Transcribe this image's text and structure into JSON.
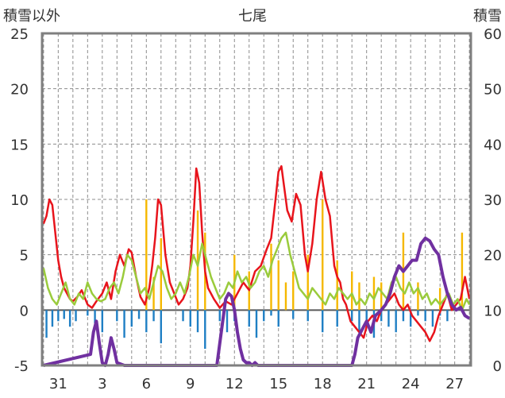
{
  "chart_data": {
    "type": "line",
    "title": "七尾",
    "left_axis_label": "積雪以外",
    "right_axis_label": "積雪",
    "left_ylim": [
      -5,
      25
    ],
    "left_yticks": [
      -5,
      0,
      5,
      10,
      15,
      20,
      25
    ],
    "right_ylim": [
      0,
      60
    ],
    "right_yticks": [
      0,
      10,
      20,
      30,
      40,
      50,
      60
    ],
    "x_range": [
      29.9,
      59.1
    ],
    "x_ticks": [
      {
        "value": 31,
        "label": "31"
      },
      {
        "value": 34,
        "label": "3"
      },
      {
        "value": 37,
        "label": "6"
      },
      {
        "value": 40,
        "label": "9"
      },
      {
        "value": 43,
        "label": "12"
      },
      {
        "value": 46,
        "label": "15"
      },
      {
        "value": 49,
        "label": "18"
      },
      {
        "value": 52,
        "label": "21"
      },
      {
        "value": 55,
        "label": "24"
      },
      {
        "value": 58,
        "label": "27"
      }
    ],
    "grid": true,
    "series": [
      {
        "color": "#e8141c",
        "axis": "left",
        "x": [
          30.0,
          30.2,
          30.4,
          30.6,
          30.8,
          31.0,
          31.2,
          31.4,
          31.6,
          31.8,
          32.0,
          32.3,
          32.6,
          33.0,
          33.3,
          33.6,
          34.0,
          34.3,
          34.6,
          34.9,
          35.2,
          35.5,
          35.8,
          36.0,
          36.3,
          36.6,
          36.9,
          37.2,
          37.4,
          37.6,
          37.8,
          38.0,
          38.3,
          38.6,
          38.9,
          39.2,
          39.5,
          39.8,
          40.0,
          40.2,
          40.4,
          40.6,
          40.8,
          41.0,
          41.2,
          41.6,
          42.0,
          42.4,
          42.8,
          43.2,
          43.6,
          44.0,
          44.4,
          44.8,
          45.2,
          45.5,
          45.8,
          46.0,
          46.2,
          46.4,
          46.6,
          46.9,
          47.2,
          47.5,
          47.8,
          48.0,
          48.3,
          48.6,
          48.9,
          49.2,
          49.5,
          49.8,
          50.0,
          50.2,
          50.4,
          50.6,
          50.9,
          51.2,
          51.5,
          51.8,
          52.1,
          52.4,
          52.7,
          53.0,
          53.3,
          53.6,
          53.9,
          54.2,
          54.5,
          54.8,
          55.1,
          55.4,
          55.7,
          56.0,
          56.3,
          56.6,
          56.9,
          57.2,
          57.5,
          57.8,
          58.1,
          58.4,
          58.7,
          59.0
        ],
        "y": [
          7.8,
          8.5,
          10.0,
          9.5,
          7.0,
          4.5,
          3.0,
          2.0,
          1.5,
          1.0,
          0.8,
          1.2,
          1.8,
          0.5,
          0.2,
          0.8,
          1.5,
          2.5,
          1.0,
          3.5,
          5.0,
          4.0,
          5.5,
          5.2,
          3.0,
          1.2,
          0.5,
          2.0,
          4.0,
          6.5,
          10.0,
          9.5,
          5.0,
          2.5,
          1.5,
          0.5,
          1.0,
          2.0,
          4.0,
          8.0,
          12.8,
          11.5,
          7.0,
          3.5,
          2.0,
          1.0,
          0.2,
          0.8,
          0.5,
          1.5,
          2.5,
          1.8,
          3.5,
          4.0,
          5.5,
          6.5,
          10.0,
          12.5,
          13.0,
          11.0,
          9.0,
          8.0,
          10.5,
          9.5,
          5.0,
          3.5,
          6.0,
          10.0,
          12.5,
          10.0,
          8.5,
          4.0,
          3.0,
          2.5,
          1.0,
          0.5,
          -1.0,
          -1.5,
          -2.0,
          -2.5,
          -1.0,
          -0.5,
          -1.0,
          0.0,
          0.5,
          1.0,
          1.5,
          0.5,
          0.0,
          0.5,
          -0.5,
          -1.0,
          -1.5,
          -2.0,
          -2.8,
          -2.0,
          -0.5,
          0.5,
          1.5,
          0.0,
          0.5,
          1.0,
          3.0,
          1.0
        ]
      },
      {
        "color": "#9acb3c",
        "axis": "left",
        "x": [
          30.0,
          30.3,
          30.6,
          30.9,
          31.2,
          31.5,
          31.8,
          32.1,
          32.4,
          32.7,
          33.0,
          33.3,
          33.6,
          33.9,
          34.2,
          34.5,
          34.8,
          35.1,
          35.4,
          35.7,
          36.0,
          36.3,
          36.6,
          36.9,
          37.2,
          37.5,
          37.8,
          38.1,
          38.4,
          38.7,
          39.0,
          39.3,
          39.6,
          39.9,
          40.2,
          40.5,
          40.8,
          41.1,
          41.4,
          41.7,
          42.0,
          42.3,
          42.6,
          42.9,
          43.2,
          43.5,
          43.8,
          44.1,
          44.4,
          44.7,
          45.0,
          45.3,
          45.6,
          45.9,
          46.2,
          46.5,
          46.8,
          47.1,
          47.4,
          47.7,
          48.0,
          48.3,
          48.6,
          48.9,
          49.2,
          49.5,
          49.8,
          50.1,
          50.4,
          50.7,
          51.0,
          51.3,
          51.6,
          51.9,
          52.2,
          52.5,
          52.8,
          53.1,
          53.4,
          53.7,
          54.0,
          54.3,
          54.6,
          54.9,
          55.2,
          55.5,
          55.8,
          56.1,
          56.4,
          56.7,
          57.0,
          57.3,
          57.6,
          57.9,
          58.2,
          58.5,
          58.8,
          59.0
        ],
        "y": [
          3.8,
          2.0,
          1.0,
          0.5,
          1.5,
          2.5,
          1.0,
          0.5,
          1.5,
          1.0,
          2.5,
          1.5,
          1.0,
          0.8,
          1.0,
          2.0,
          2.5,
          1.5,
          3.0,
          5.0,
          4.5,
          3.0,
          1.5,
          2.0,
          1.0,
          2.5,
          4.0,
          3.5,
          2.0,
          1.0,
          1.5,
          2.5,
          1.5,
          3.0,
          5.0,
          4.0,
          6.0,
          4.5,
          3.0,
          2.0,
          1.0,
          1.5,
          2.5,
          2.0,
          3.5,
          2.5,
          3.0,
          2.0,
          2.5,
          3.5,
          4.0,
          3.0,
          4.5,
          5.5,
          6.5,
          7.0,
          5.0,
          3.5,
          2.0,
          1.5,
          1.0,
          2.0,
          1.5,
          1.0,
          0.5,
          1.5,
          1.0,
          2.0,
          1.5,
          1.0,
          1.5,
          0.5,
          1.0,
          0.5,
          1.5,
          1.0,
          2.0,
          1.5,
          1.0,
          2.5,
          3.0,
          2.0,
          1.5,
          2.5,
          1.5,
          2.0,
          1.0,
          1.5,
          0.5,
          1.0,
          0.5,
          1.0,
          1.5,
          0.5,
          1.0,
          0.0,
          1.0,
          0.5
        ]
      },
      {
        "color": "#f5b800",
        "axis": "left",
        "type": "bar",
        "x": [
          37.0,
          37.5,
          38.0,
          40.5,
          41.0,
          43.0,
          44.0,
          45.5,
          46.0,
          46.5,
          47.0,
          48.0,
          49.0,
          50.0,
          51.0,
          51.5,
          52.5,
          53.0,
          54.5,
          55.5,
          57.0,
          58.5
        ],
        "y": [
          10.0,
          3.0,
          6.5,
          9.0,
          7.0,
          5.0,
          3.5,
          6.0,
          4.5,
          2.5,
          3.5,
          5.0,
          10.0,
          4.5,
          3.5,
          2.5,
          3.0,
          2.5,
          7.0,
          2.5,
          2.0,
          7.0
        ]
      },
      {
        "color": "#1f7fc4",
        "axis": "left",
        "type": "bar",
        "x": [
          30.2,
          30.6,
          31.0,
          31.4,
          31.8,
          32.2,
          33.0,
          33.5,
          34.0,
          35.0,
          35.5,
          36.0,
          36.5,
          37.0,
          37.5,
          38.0,
          39.5,
          40.0,
          40.5,
          41.0,
          42.0,
          42.5,
          43.0,
          44.0,
          44.5,
          45.0,
          45.5,
          46.0,
          47.0,
          48.0,
          49.0,
          50.0,
          51.0,
          51.5,
          52.0,
          52.5,
          53.0,
          53.5,
          54.0,
          54.5,
          55.0,
          55.5,
          56.0,
          56.5,
          57.0,
          57.5
        ],
        "y": [
          -2.5,
          -1.5,
          -1.0,
          -0.8,
          -1.5,
          -1.0,
          -0.5,
          -1.2,
          -2.0,
          -1.0,
          -2.5,
          -1.5,
          -0.8,
          -2.0,
          -1.0,
          -3.0,
          -1.0,
          -1.5,
          -2.0,
          -3.5,
          -1.0,
          -2.0,
          -1.0,
          -1.5,
          -2.5,
          -1.0,
          -0.5,
          -1.5,
          -0.8,
          -1.0,
          -2.0,
          -1.5,
          -1.0,
          -2.0,
          -1.5,
          -2.5,
          -1.0,
          -1.5,
          -2.0,
          -1.0,
          -1.5,
          -0.5,
          -1.0,
          -1.5,
          -0.5,
          -1.0
        ]
      },
      {
        "color": "#7030a0",
        "axis": "right",
        "x": [
          30.0,
          33.2,
          33.4,
          33.6,
          33.8,
          34.0,
          34.2,
          34.4,
          34.6,
          34.8,
          35.0,
          35.5,
          41.8,
          42.0,
          42.2,
          42.4,
          42.6,
          42.8,
          43.0,
          43.2,
          43.4,
          43.6,
          43.8,
          44.0,
          44.2,
          44.4,
          44.6,
          44.8,
          45.0,
          51.0,
          51.2,
          51.4,
          51.6,
          51.8,
          52.0,
          52.3,
          52.6,
          53.0,
          53.3,
          53.6,
          53.9,
          54.2,
          54.5,
          54.8,
          55.1,
          55.4,
          55.7,
          56.0,
          56.3,
          56.6,
          56.9,
          57.2,
          57.5,
          57.8,
          58.1,
          58.4,
          58.7,
          59.0
        ],
        "y": [
          0.0,
          2.0,
          6.0,
          8.0,
          4.0,
          0.5,
          0.0,
          2.0,
          5.0,
          3.0,
          0.5,
          0.0,
          0.0,
          4.0,
          8.0,
          12.0,
          13.0,
          12.5,
          10.0,
          6.0,
          3.0,
          1.0,
          0.5,
          0.5,
          0.0,
          0.5,
          0.0,
          0.0,
          0.0,
          0.0,
          2.0,
          5.0,
          6.0,
          7.0,
          8.0,
          6.0,
          9.0,
          10.0,
          11.0,
          13.0,
          16.0,
          18.0,
          17.0,
          18.0,
          19.0,
          19.0,
          22.0,
          23.0,
          22.5,
          21.0,
          20.0,
          16.0,
          13.0,
          11.0,
          10.0,
          10.5,
          9.0,
          8.5
        ]
      }
    ]
  }
}
